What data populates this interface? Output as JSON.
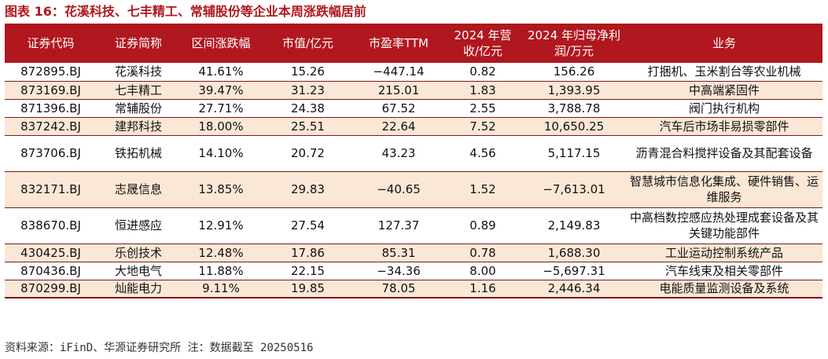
{
  "title": "图表 16：花溪科技、七丰精工、常辅股份等企业本周涨跌幅居前",
  "table": {
    "headers": [
      "证券代码",
      "证券简称",
      "区间涨跌幅",
      "市值/亿元",
      "市盈率TTM",
      "2024 年营收/亿元",
      "2024 年归母净利润/万元",
      "业务"
    ],
    "rows": [
      [
        "872895.BJ",
        "花溪科技",
        "41.61%",
        "15.26",
        "−447.14",
        "0.82",
        "156.26",
        "打捆机、玉米割台等农业机械"
      ],
      [
        "873169.BJ",
        "七丰精工",
        "39.47%",
        "31.23",
        "215.01",
        "1.83",
        "1,393.95",
        "中高端紧固件"
      ],
      [
        "871396.BJ",
        "常辅股份",
        "27.71%",
        "24.38",
        "67.52",
        "2.55",
        "3,788.78",
        "阀门执行机构"
      ],
      [
        "837242.BJ",
        "建邦科技",
        "18.00%",
        "25.51",
        "22.64",
        "7.52",
        "10,650.25",
        "汽车后市场非易损零部件"
      ],
      [
        "873706.BJ",
        "铁拓机械",
        "14.10%",
        "20.72",
        "43.23",
        "4.56",
        "5,117.15",
        "沥青混合料搅拌设备及其配套设备"
      ],
      [
        "832171.BJ",
        "志晟信息",
        "13.85%",
        "29.83",
        "−40.65",
        "1.52",
        "−7,613.01",
        "智慧城市信息化集成、硬件销售、运维服务"
      ],
      [
        "838670.BJ",
        "恒进感应",
        "12.91%",
        "27.54",
        "127.37",
        "0.89",
        "2,149.83",
        "中高档数控感应热处理成套设备及其关键功能部件"
      ],
      [
        "430425.BJ",
        "乐创技术",
        "12.48%",
        "17.86",
        "85.31",
        "0.78",
        "1,688.30",
        "工业运动控制系统产品"
      ],
      [
        "870436.BJ",
        "大地电气",
        "11.88%",
        "22.15",
        "−34.36",
        "8.00",
        "−5,697.31",
        "汽车线束及相关零部件"
      ],
      [
        "870299.BJ",
        "灿能电力",
        "9.11%",
        "19.85",
        "78.05",
        "1.16",
        "2,446.34",
        "电能质量监测设备及系统"
      ]
    ]
  },
  "source": "资料来源：iFinD、华源证券研究所   注：数据截至 20250516",
  "colors": {
    "header_bg": "#b0171f",
    "stripe_bg": "#fbe7d6",
    "title_color": "#b0171f"
  }
}
